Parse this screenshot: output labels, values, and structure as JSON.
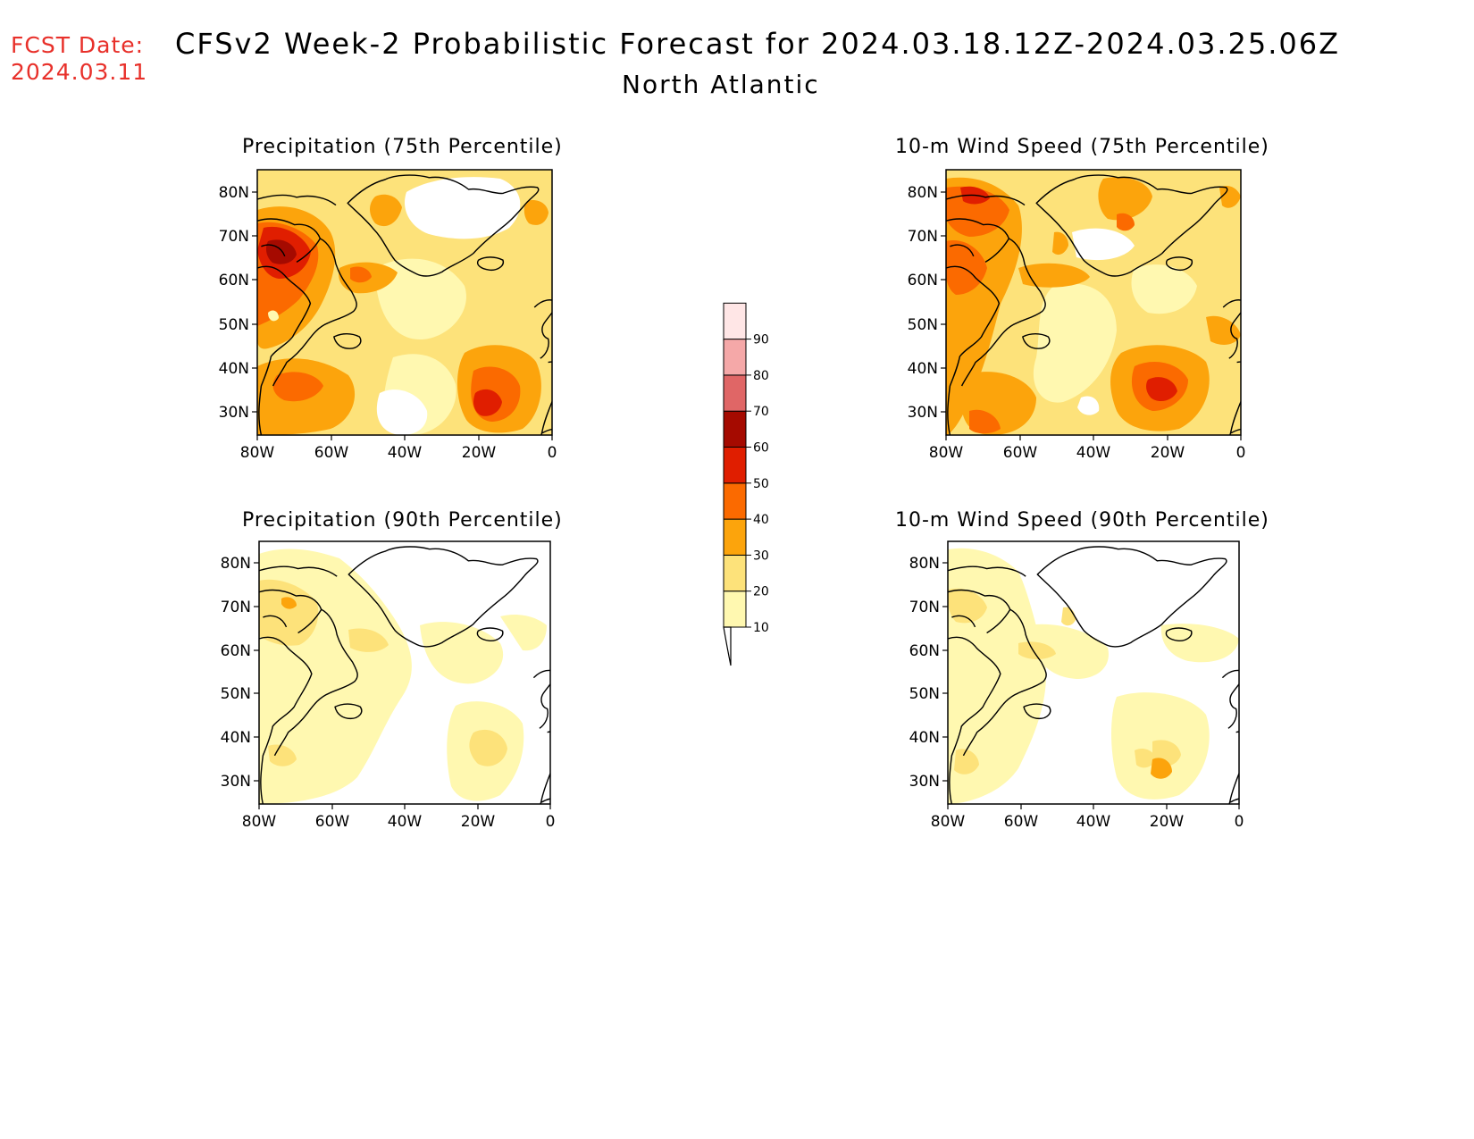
{
  "header": {
    "fcst_label": "FCST Date:",
    "fcst_date": "2024.03.11",
    "title": "CFSv2 Week-2 Probabilistic Forecast for 2024.03.18.12Z-2024.03.25.06Z",
    "subtitle": "North Atlantic"
  },
  "axes": {
    "lat_ticks": [
      "80N",
      "70N",
      "60N",
      "50N",
      "40N",
      "30N"
    ],
    "lon_ticks": [
      "80W",
      "60W",
      "40W",
      "20W",
      "0"
    ]
  },
  "panels": [
    {
      "title": "Precipitation (75th Percentile)"
    },
    {
      "title": "10-m Wind Speed (75th Percentile)"
    },
    {
      "title": "Precipitation (90th Percentile)"
    },
    {
      "title": "10-m Wind Speed (90th Percentile)"
    }
  ],
  "colorbar": {
    "labels": [
      "10",
      "20",
      "30",
      "40",
      "50",
      "60",
      "70",
      "80",
      "90"
    ],
    "colors": [
      "#fff8b0",
      "#fde27a",
      "#fca40c",
      "#fb6a00",
      "#e01e00",
      "#a50a00",
      "#e06666",
      "#f5a8a8",
      "#ffe6e6"
    ]
  }
}
